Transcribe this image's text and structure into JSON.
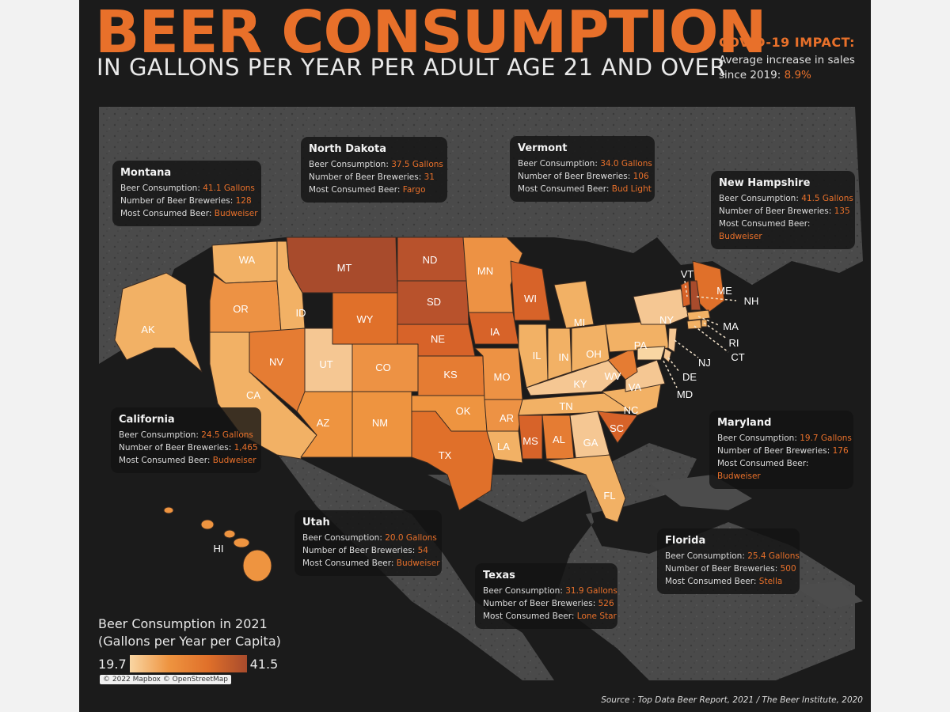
{
  "title": "BEER CONSUMPTION",
  "subtitle": "IN GALLONS PER YEAR PER ADULT AGE 21 AND OVER",
  "covid": {
    "heading": "COVID-19 IMPACT:",
    "line1": "Average increase in sales",
    "line2_prefix": "since 2019: ",
    "value": "8.9%"
  },
  "colors": {
    "accent": "#e8702a",
    "background": "#1b1b1b",
    "scale_low": "#f9d6a3",
    "scale_high": "#a84b2c"
  },
  "legend": {
    "title_line1": "Beer Consumption in 2021",
    "title_line2": "(Gallons per Year per Capita)",
    "min": "19.7",
    "max": "41.5"
  },
  "credit": "© 2022 Mapbox © OpenStreetMap",
  "source": "Source : Top Data Beer Report, 2021 / The Beer Institute, 2020",
  "cards": {
    "montana": {
      "name": "Montana",
      "consumption_label": "Beer Consumption: ",
      "consumption": "41.1 Gallons",
      "breweries_label": "Number of Beer Breweries: ",
      "breweries": "128",
      "beer_label": "Most Consumed Beer: ",
      "beer": "Budweiser"
    },
    "north_dakota": {
      "name": "North Dakota",
      "consumption_label": "Beer Consumption: ",
      "consumption": "37.5 Gallons",
      "breweries_label": "Number of Beer Breweries: ",
      "breweries": "31",
      "beer_label": "Most Consumed Beer: ",
      "beer": "Fargo"
    },
    "vermont": {
      "name": "Vermont",
      "consumption_label": "Beer Consumption: ",
      "consumption": "34.0 Gallons",
      "breweries_label": "Number of Beer Breweries: ",
      "breweries": "106",
      "beer_label": "Most Consumed Beer: ",
      "beer": "Bud Light"
    },
    "new_hampshire": {
      "name": "New Hampshire",
      "consumption_label": "Beer Consumption: ",
      "consumption": "41.5 Gallons",
      "breweries_label": "Number of Beer Breweries: ",
      "breweries": "135",
      "beer_label": "Most Consumed Beer: ",
      "beer": "Budweiser"
    },
    "california": {
      "name": "California",
      "consumption_label": "Beer Consumption: ",
      "consumption": "24.5 Gallons",
      "breweries_label": "Number of Beer Breweries: ",
      "breweries": "1,465",
      "beer_label": "Most Consumed Beer: ",
      "beer": "Budweiser"
    },
    "maryland": {
      "name": "Maryland",
      "consumption_label": "Beer Consumption: ",
      "consumption": "19.7 Gallons",
      "breweries_label": "Number of Beer Breweries: ",
      "breweries": "176",
      "beer_label": "Most Consumed Beer: ",
      "beer": "Budweiser"
    },
    "utah": {
      "name": "Utah",
      "consumption_label": "Beer Consumption: ",
      "consumption": "20.0 Gallons",
      "breweries_label": "Number of Beer Breweries: ",
      "breweries": "54",
      "beer_label": "Most Consumed Beer: ",
      "beer": "Budweiser"
    },
    "florida": {
      "name": "Florida",
      "consumption_label": "Beer Consumption: ",
      "consumption": "25.4 Gallons",
      "breweries_label": "Number of Beer Breweries: ",
      "breweries": "500",
      "beer_label": "Most Consumed Beer: ",
      "beer": "Stella"
    },
    "texas": {
      "name": "Texas",
      "consumption_label": "Beer Consumption: ",
      "consumption": "31.9 Gallons",
      "breweries_label": "Number of Beer Breweries: ",
      "breweries": "526",
      "beer_label": "Most Consumed Beer: ",
      "beer": "Lone Star"
    }
  },
  "states": {
    "WA": "WA",
    "OR": "OR",
    "CA": "CA",
    "ID": "ID",
    "NV": "NV",
    "MT": "MT",
    "WY": "WY",
    "UT": "UT",
    "AZ": "AZ",
    "CO": "CO",
    "NM": "NM",
    "ND": "ND",
    "SD": "SD",
    "NE": "NE",
    "KS": "KS",
    "OK": "OK",
    "TX": "TX",
    "MN": "MN",
    "IA": "IA",
    "MO": "MO",
    "AR": "AR",
    "LA": "LA",
    "WI": "WI",
    "IL": "IL",
    "MI": "MI",
    "IN": "IN",
    "OH": "OH",
    "KY": "KY",
    "TN": "TN",
    "MS": "MS",
    "AL": "AL",
    "GA": "GA",
    "FL": "FL",
    "SC": "SC",
    "NC": "NC",
    "VA": "VA",
    "WV": "WV",
    "PA": "PA",
    "NY": "NY",
    "ME": "ME",
    "VT": "VT",
    "NH": "NH",
    "MA": "MA",
    "RI": "RI",
    "CT": "CT",
    "NJ": "NJ",
    "DE": "DE",
    "MD": "MD",
    "AK": "AK",
    "HI": "HI"
  }
}
